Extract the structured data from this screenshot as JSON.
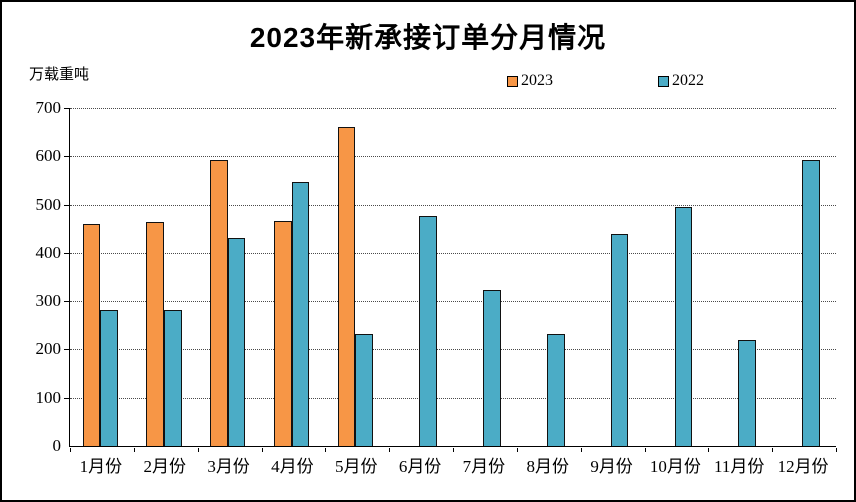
{
  "title": "2023年新承接订单分月情况",
  "y_unit_label": "万载重吨",
  "chart_data": {
    "type": "bar",
    "title": "2023年新承接订单分月情况",
    "ylabel": "万载重吨",
    "xlabel": "",
    "categories": [
      "1月份",
      "2月份",
      "3月份",
      "4月份",
      "5月份",
      "6月份",
      "7月份",
      "8月份",
      "9月份",
      "10月份",
      "11月份",
      "12月份"
    ],
    "series": [
      {
        "name": "2023",
        "color": "#F79646",
        "values": [
          460,
          463,
          593,
          467,
          660,
          null,
          null,
          null,
          null,
          null,
          null,
          null
        ]
      },
      {
        "name": "2022",
        "color": "#4BACC6",
        "values": [
          281,
          282,
          430,
          547,
          231,
          476,
          324,
          232,
          440,
          494,
          220,
          592
        ]
      }
    ],
    "ylim": [
      0,
      700
    ],
    "ytick_step": 100,
    "grid": "horizontal-dotted",
    "legend_position": "top-center",
    "bar_border_color": "#111111"
  }
}
